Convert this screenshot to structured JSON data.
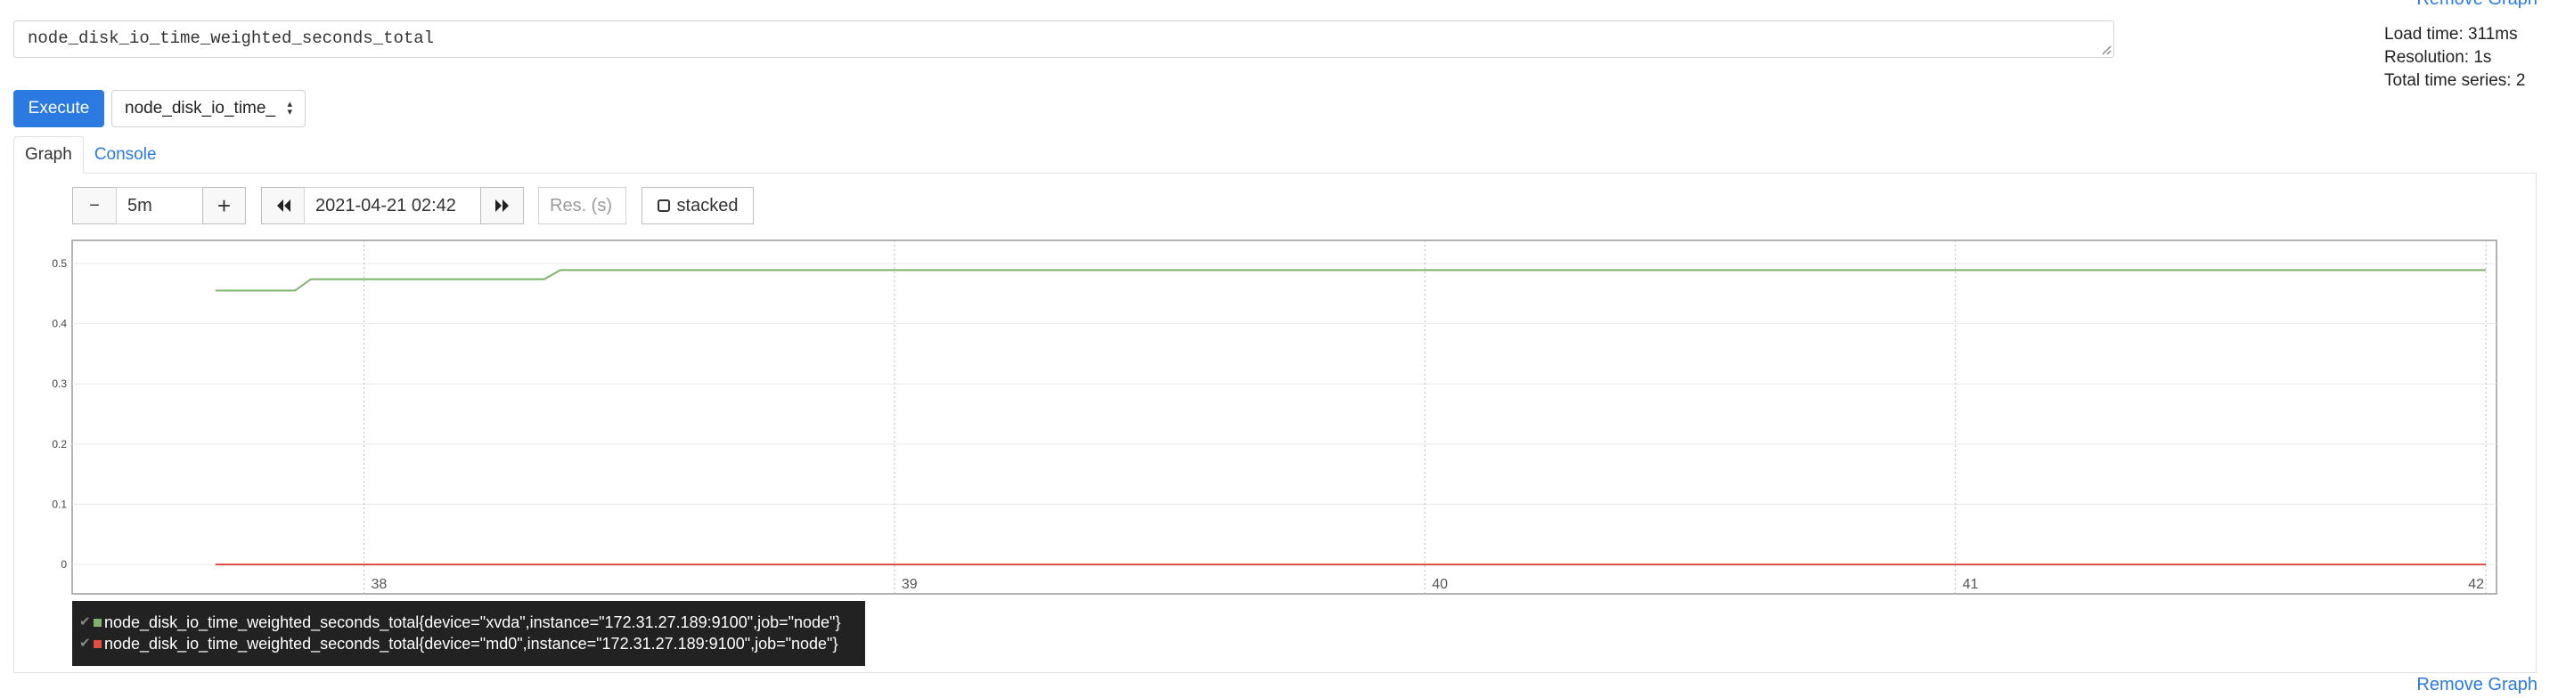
{
  "header": {
    "remove_graph_label": "Remove Graph"
  },
  "query": {
    "expression": "node_disk_io_time_weighted_seconds_total"
  },
  "stats": {
    "load_time": "Load time: 311ms",
    "resolution": "Resolution: 1s",
    "total_series": "Total time series: 2"
  },
  "toolbar": {
    "execute_label": "Execute",
    "metric_select_value": "node_disk_io_time_"
  },
  "tabs": [
    {
      "label": "Graph",
      "active": true
    },
    {
      "label": "Console",
      "active": false
    }
  ],
  "graph_controls": {
    "range_decrease_label": "−",
    "range_value": "5m",
    "range_increase_label": "+",
    "back_icon": "double-chevron-left-icon",
    "end_time": "2021-04-21 02:42",
    "forward_icon": "double-chevron-right-icon",
    "resolution_placeholder": "Res. (s)",
    "stacked_label": "stacked"
  },
  "chart_data": {
    "type": "line",
    "title": "",
    "xlabel": "",
    "ylabel": "",
    "ylim": [
      0,
      0.55
    ],
    "xlim": [
      37.45,
      42.02
    ],
    "yticks": [
      0,
      0.1,
      0.2,
      0.3,
      0.4,
      0.5
    ],
    "xticks": [
      38,
      39,
      40,
      41,
      42
    ],
    "x_unit": "minute of 02:xx",
    "grid": true,
    "series": [
      {
        "name": "node_disk_io_time_weighted_seconds_total{device=\"xvda\",instance=\"172.31.27.189:9100\",job=\"node\"}",
        "color": "#7eb26d",
        "points": [
          [
            37.72,
            0.455
          ],
          [
            37.87,
            0.455
          ],
          [
            37.9,
            0.474
          ],
          [
            38.34,
            0.474
          ],
          [
            38.37,
            0.489
          ],
          [
            42.0,
            0.489
          ]
        ]
      },
      {
        "name": "node_disk_io_time_weighted_seconds_total{device=\"md0\",instance=\"172.31.27.189:9100\",job=\"node\"}",
        "color": "#e24d42",
        "points": [
          [
            37.72,
            0.0
          ],
          [
            42.0,
            0.0
          ]
        ]
      }
    ]
  },
  "legend": {
    "items": [
      {
        "label": "node_disk_io_time_weighted_seconds_total{device=\"xvda\",instance=\"172.31.27.189:9100\",job=\"node\"}",
        "color": "#7eb26d"
      },
      {
        "label": "node_disk_io_time_weighted_seconds_total{device=\"md0\",instance=\"172.31.27.189:9100\",job=\"node\"}",
        "color": "#e24d42"
      }
    ]
  }
}
